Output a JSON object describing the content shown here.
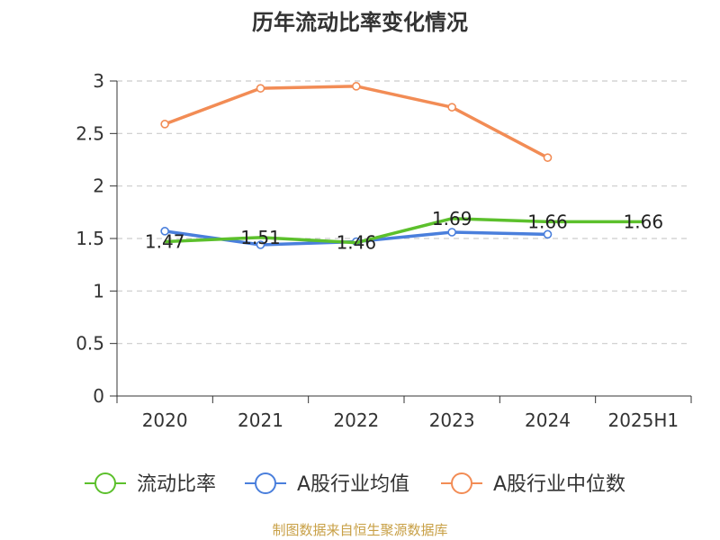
{
  "title": "历年流动比率变化情况",
  "source_note": "制图数据来自恒生聚源数据库",
  "chart_data": {
    "type": "line",
    "title": "历年流动比率变化情况",
    "xlabel": "",
    "ylabel": "",
    "categories": [
      "2020",
      "2021",
      "2022",
      "2023",
      "2024",
      "2025H1"
    ],
    "ylim": [
      0,
      3
    ],
    "yticks": [
      0,
      0.5,
      1,
      1.5,
      2,
      2.5,
      3
    ],
    "grid": true,
    "legend_position": "bottom",
    "series": [
      {
        "name": "流动比率",
        "color": "#5cc02c",
        "values": [
          1.47,
          1.51,
          1.46,
          1.69,
          1.66,
          1.66
        ],
        "labels": [
          "1.47",
          "1.51",
          "1.46",
          "1.69",
          "1.66",
          "1.66"
        ],
        "show_markers": false
      },
      {
        "name": "A股行业均值",
        "color": "#4a7fdc",
        "values": [
          1.57,
          1.44,
          1.47,
          1.56,
          1.54,
          null
        ],
        "show_markers": true
      },
      {
        "name": "A股行业中位数",
        "color": "#f28c55",
        "values": [
          2.59,
          2.93,
          2.95,
          2.75,
          2.27,
          null
        ],
        "show_markers": true
      }
    ]
  }
}
